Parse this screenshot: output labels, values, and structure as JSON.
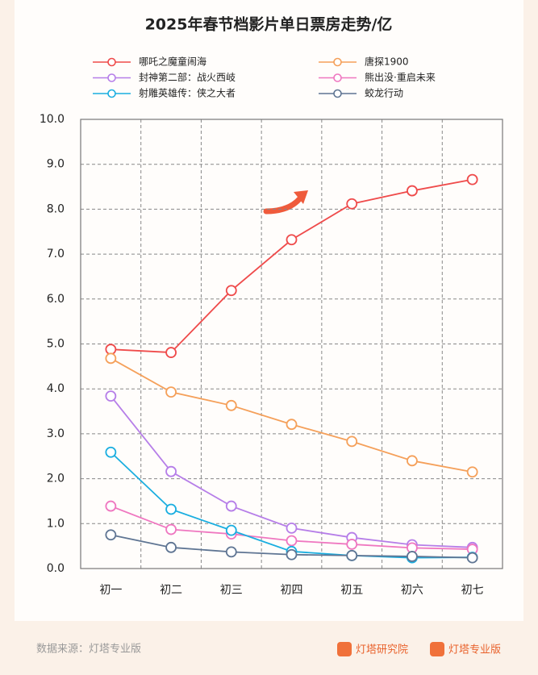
{
  "chart_data": {
    "type": "line",
    "title": "2025年春节档影片单日票房走势/亿",
    "categories": [
      "初一",
      "初二",
      "初三",
      "初四",
      "初五",
      "初六",
      "初七"
    ],
    "series": [
      {
        "name": "哪吒之魔童闹海",
        "color": "#ef4b4b",
        "values": [
          4.88,
          4.81,
          6.19,
          7.32,
          8.12,
          8.41,
          8.66
        ]
      },
      {
        "name": "唐探1900",
        "color": "#f5a05a",
        "values": [
          4.68,
          3.93,
          3.63,
          3.21,
          2.83,
          2.4,
          2.15
        ]
      },
      {
        "name": "封神第二部：战火西岐",
        "color": "#b67ee8",
        "values": [
          3.84,
          2.16,
          1.39,
          0.9,
          0.69,
          0.53,
          0.47
        ]
      },
      {
        "name": "熊出没·重启未来",
        "color": "#ef77c0",
        "values": [
          1.39,
          0.87,
          0.77,
          0.62,
          0.54,
          0.46,
          0.43
        ]
      },
      {
        "name": "射雕英雄传：侠之大者",
        "color": "#1aaee0",
        "values": [
          2.59,
          1.32,
          0.85,
          0.38,
          0.29,
          0.24,
          0.25
        ]
      },
      {
        "name": "蛟龙行动",
        "color": "#5f7593",
        "values": [
          0.75,
          0.47,
          0.37,
          0.31,
          0.29,
          0.27,
          0.24
        ]
      }
    ],
    "ylim": [
      0,
      10
    ],
    "yticks": [
      {
        "value": 0,
        "label": "0.0"
      },
      {
        "value": 1,
        "label": "1.0"
      },
      {
        "value": 2,
        "label": "2.0"
      },
      {
        "value": 3,
        "label": "3.0"
      },
      {
        "value": 4,
        "label": "4.0"
      },
      {
        "value": 5,
        "label": "5.0"
      },
      {
        "value": 6,
        "label": "6.0"
      },
      {
        "value": 7,
        "label": "7.0"
      },
      {
        "value": 8,
        "label": "8.0"
      },
      {
        "value": 9,
        "label": "9.0"
      },
      {
        "value": 10,
        "label": "10.0"
      }
    ],
    "grid": true,
    "legend": "top"
  },
  "footer": {
    "source": "数据来源：灯塔专业版",
    "brands": [
      "灯塔研究院",
      "灯塔专业版"
    ]
  }
}
